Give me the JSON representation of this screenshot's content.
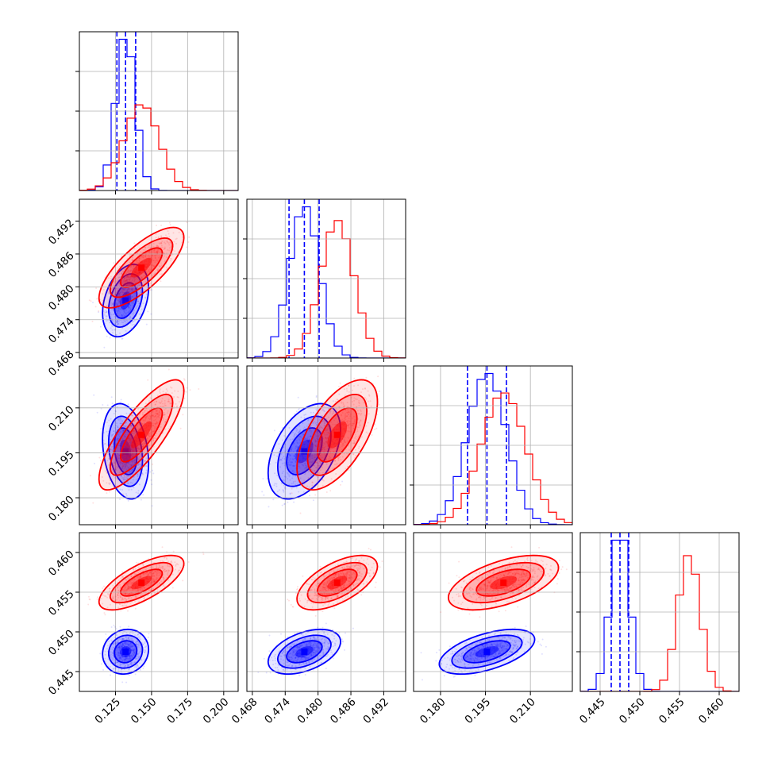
{
  "chart_data": {
    "type": "corner",
    "title": "",
    "parameters": [
      {
        "range": [
          0.1,
          0.21
        ],
        "ticks": [
          0.125,
          0.15,
          0.175,
          0.2
        ],
        "tick_labels": [
          "0.125",
          "0.150",
          "0.175",
          "0.200"
        ]
      },
      {
        "range": [
          0.467,
          0.496
        ],
        "ticks": [
          0.468,
          0.474,
          0.48,
          0.486,
          0.492
        ],
        "tick_labels": [
          "0.468",
          "0.474",
          "0.480",
          "0.486",
          "0.492"
        ]
      },
      {
        "range": [
          0.171,
          0.224
        ],
        "ticks": [
          0.18,
          0.195,
          0.21
        ],
        "tick_labels": [
          "0.180",
          "0.195",
          "0.210"
        ]
      },
      {
        "range": [
          0.4425,
          0.4625
        ],
        "ticks": [
          0.445,
          0.45,
          0.455,
          0.46
        ],
        "tick_labels": [
          "0.445",
          "0.450",
          "0.455",
          "0.460"
        ]
      }
    ],
    "grid": true,
    "legend": "none",
    "series": [
      {
        "color": "#0000ff",
        "mean": [
          0.132,
          0.4775,
          0.1955,
          0.4475
        ],
        "sigma": [
          0.0065,
          0.0027,
          0.0065,
          0.00115
        ],
        "correlations": {
          "1,0": 0.35,
          "2,0": -0.25,
          "2,1": 0.45,
          "3,0": 0.1,
          "3,1": 0.45,
          "3,2": 0.55
        },
        "quantile_lines": [
          [
            0.126,
            0.132,
            0.139
          ],
          [
            0.4747,
            0.4775,
            0.4802
          ],
          [
            0.189,
            0.1955,
            0.202
          ],
          [
            0.4464,
            0.4475,
            0.4486
          ]
        ]
      },
      {
        "color": "#ff0000",
        "mean": [
          0.143,
          0.4835,
          0.201,
          0.4562
        ],
        "sigma": [
          0.012,
          0.003,
          0.0075,
          0.0014
        ],
        "correlations": {
          "1,0": 0.75,
          "2,0": 0.8,
          "2,1": 0.6,
          "3,0": 0.7,
          "3,1": 0.6,
          "3,2": 0.55
        },
        "quantile_lines": []
      }
    ]
  }
}
